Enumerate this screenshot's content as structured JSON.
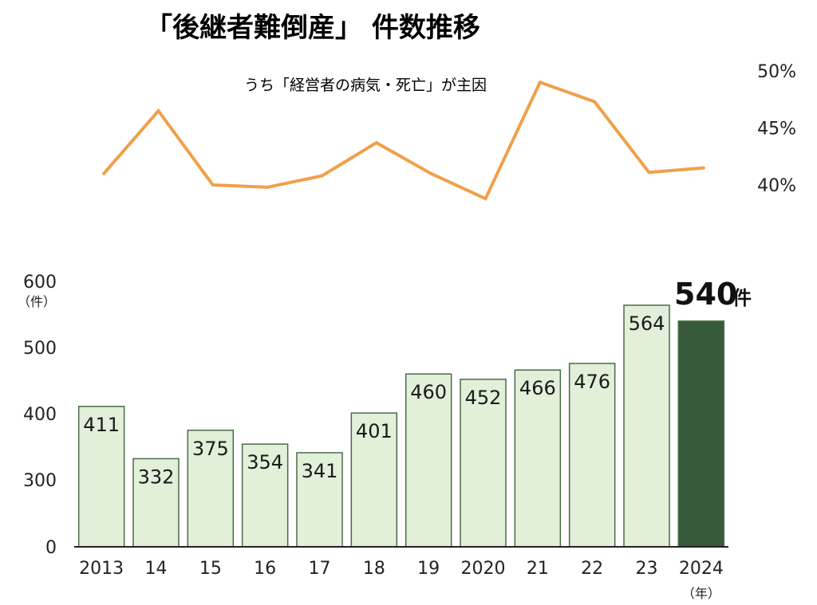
{
  "title": "「後継者難倒産」 件数推移",
  "subtitle": "うち「経営者の病気・死亡」が主因",
  "colors": {
    "bar_fill": "#e2efd9",
    "bar_stroke": "#4a6b47",
    "highlight_fill": "#375a3b",
    "line": "#f0a04a",
    "axis": "#222222"
  },
  "chart_data": [
    {
      "type": "line",
      "name": "うち「経営者の病気・死亡」が主因",
      "categories": [
        "2013",
        "14",
        "15",
        "16",
        "17",
        "18",
        "19",
        "2020",
        "21",
        "22",
        "23",
        "2024"
      ],
      "values": [
        41.0,
        46.5,
        40.0,
        39.8,
        40.8,
        43.7,
        41.0,
        38.8,
        49.0,
        47.3,
        41.1,
        41.5
      ],
      "ylim": [
        40,
        50
      ],
      "yticks": [
        "40%",
        "45%",
        "50%"
      ],
      "ytick_values": [
        40,
        45,
        50
      ]
    },
    {
      "type": "bar",
      "categories": [
        "2013",
        "14",
        "15",
        "16",
        "17",
        "18",
        "19",
        "2020",
        "21",
        "22",
        "23",
        "2024"
      ],
      "values": [
        411,
        332,
        375,
        354,
        341,
        401,
        460,
        452,
        466,
        476,
        564,
        540
      ],
      "labels": [
        "411",
        "332",
        "375",
        "354",
        "341",
        "401",
        "460",
        "452",
        "466",
        "476",
        "564",
        "540"
      ],
      "ylim": [
        0,
        600
      ],
      "yticks": [
        "0",
        "300",
        "400",
        "500",
        "600"
      ],
      "ytick_values": [
        0,
        300,
        400,
        500,
        600
      ],
      "y_unit": "（件）",
      "x_unit": "（年）",
      "highlight_index": 11,
      "highlight_value": "540",
      "highlight_unit": "件"
    }
  ]
}
